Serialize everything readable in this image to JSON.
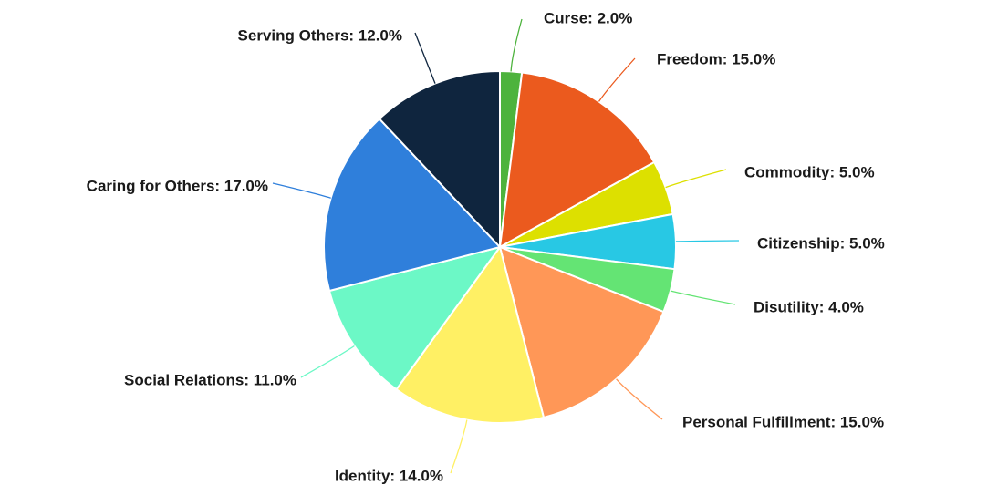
{
  "chart_data": {
    "type": "pie",
    "title": "",
    "slices": [
      {
        "label": "Curse",
        "value": 2.0,
        "display": "Curse: 2.0%",
        "color": "#4db33d"
      },
      {
        "label": "Freedom",
        "value": 15.0,
        "display": "Freedom: 15.0%",
        "color": "#eb5a1e"
      },
      {
        "label": "Commodity",
        "value": 5.0,
        "display": "Commodity: 5.0%",
        "color": "#dde000"
      },
      {
        "label": "Citizenship",
        "value": 5.0,
        "display": "Citizenship: 5.0%",
        "color": "#28c8e4"
      },
      {
        "label": "Disutility",
        "value": 4.0,
        "display": "Disutility: 4.0%",
        "color": "#64e474"
      },
      {
        "label": "Personal Fulfillment",
        "value": 15.0,
        "display": "Personal Fulfillment: 15.0%",
        "color": "#ff9757"
      },
      {
        "label": "Identity",
        "value": 14.0,
        "display": "Identity: 14.0%",
        "color": "#fff064"
      },
      {
        "label": "Social Relations",
        "value": 11.0,
        "display": "Social Relations: 11.0%",
        "color": "#6cf8c6"
      },
      {
        "label": "Caring for Others",
        "value": 17.0,
        "display": "Caring for Others: 17.0%",
        "color": "#2f7fdb"
      },
      {
        "label": "Serving Others",
        "value": 12.0,
        "display": "Serving Others: 12.0%",
        "color": "#0f253e"
      }
    ]
  }
}
